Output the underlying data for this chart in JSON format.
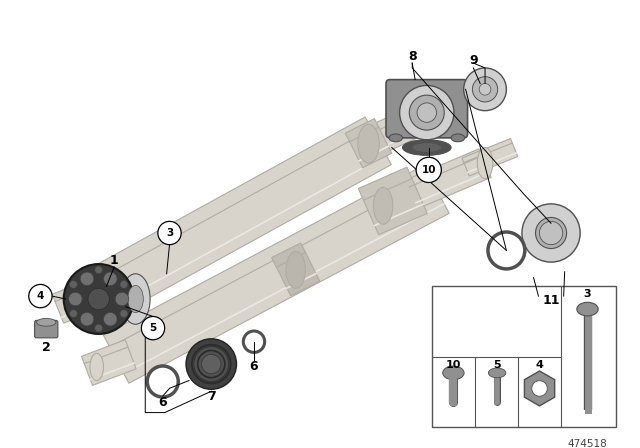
{
  "bg_color": "#ffffff",
  "fig_width": 6.4,
  "fig_height": 4.48,
  "dpi": 100,
  "part_number": "474518",
  "shaft_color": "#d8d4cc",
  "shaft_edge": "#b0aca4",
  "shaft_highlight": "#eae8e2",
  "med_gray": "#909090",
  "dark_gray": "#505050",
  "light_gray": "#d0d0d0",
  "disc_dark": "#3a3a3a",
  "mount_gray": "#909090"
}
